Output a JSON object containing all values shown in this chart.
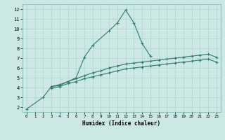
{
  "x": [
    0,
    1,
    2,
    3,
    4,
    5,
    6,
    7,
    8,
    9,
    10,
    11,
    12,
    13,
    14,
    15,
    16,
    17,
    18,
    19,
    20,
    21,
    22,
    23
  ],
  "series1": [
    1.8,
    null,
    3.0,
    4.1,
    4.2,
    4.6,
    5.0,
    7.1,
    8.3,
    null,
    9.8,
    10.6,
    11.9,
    10.6,
    8.5,
    7.2,
    null,
    null,
    null,
    null,
    null,
    null,
    null,
    null
  ],
  "series2": [
    null,
    null,
    null,
    4.1,
    4.3,
    4.6,
    4.9,
    5.2,
    5.5,
    5.7,
    6.0,
    6.2,
    6.4,
    6.5,
    6.6,
    6.7,
    6.8,
    6.9,
    7.0,
    7.1,
    7.2,
    7.3,
    7.4,
    7.1
  ],
  "series3": [
    null,
    null,
    null,
    3.9,
    4.1,
    4.4,
    4.6,
    4.9,
    5.1,
    5.3,
    5.5,
    5.7,
    5.9,
    6.0,
    6.1,
    6.2,
    6.3,
    6.4,
    6.5,
    6.6,
    6.7,
    6.8,
    6.9,
    6.6
  ],
  "line_color": "#2e7d6e",
  "bg_color": "#cce8e4",
  "grid_color": "#b0d4d0",
  "xlabel": "Humidex (Indice chaleur)",
  "xlim": [
    -0.5,
    23.5
  ],
  "ylim": [
    1.5,
    12.5
  ],
  "xticks": [
    0,
    1,
    2,
    3,
    4,
    5,
    6,
    7,
    8,
    9,
    10,
    11,
    12,
    13,
    14,
    15,
    16,
    17,
    18,
    19,
    20,
    21,
    22,
    23
  ],
  "yticks": [
    2,
    3,
    4,
    5,
    6,
    7,
    8,
    9,
    10,
    11,
    12
  ]
}
